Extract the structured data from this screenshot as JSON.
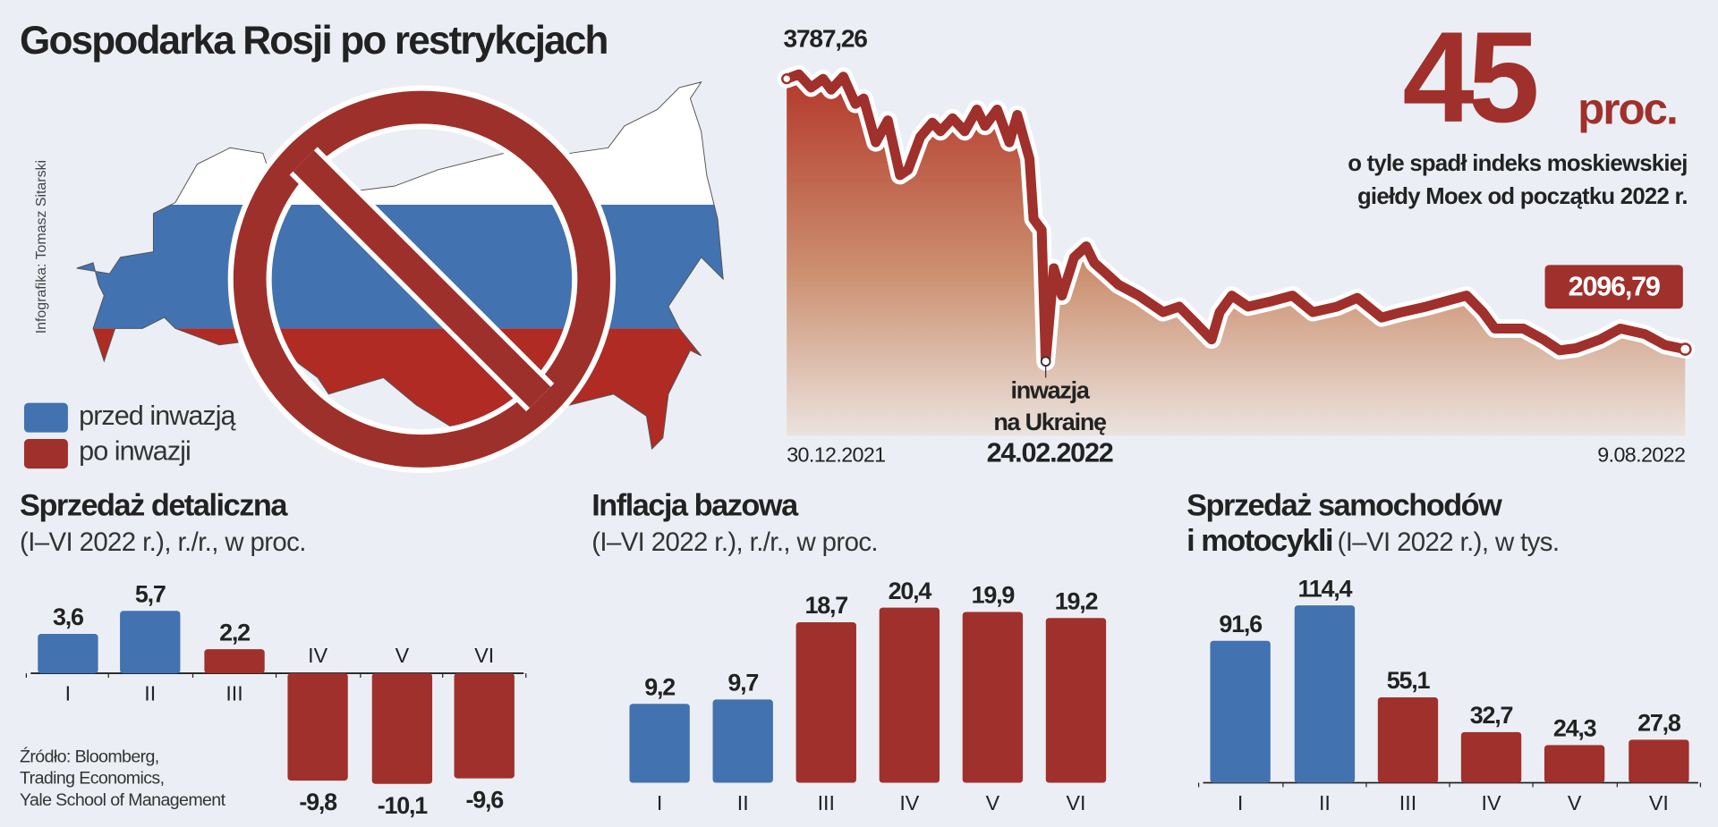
{
  "title": "Gospodarka Rosji po restrykcjach",
  "credit": "Infografika: Tomasz Sitarski",
  "legend": [
    {
      "label": "przed inwazją",
      "color": "#4272b0"
    },
    {
      "label": "po inwazji",
      "color": "#a0302b"
    }
  ],
  "headline": {
    "number": "45",
    "unit": "proc.",
    "line1": "o tyle spadł indeks moskiewskiej",
    "line2": "giełdy Moex od początku 2022 r."
  },
  "source": [
    "Źródło: Bloomberg,",
    "Trading Economics,",
    "Yale School of Management"
  ],
  "chart_data": [
    {
      "type": "area",
      "title": "Moex index",
      "start_label": "3787,26",
      "end_label": "2096,79",
      "x_start_label": "30.12.2021",
      "x_end_label": "9.08.2022",
      "annotation": {
        "line1": "inwazja",
        "line2": "na Ukrainę",
        "line3": "24.02.2022",
        "day": 64
      },
      "x_unit": "days since 30.12.2021",
      "x": [
        0,
        3,
        6,
        9,
        11,
        14,
        17,
        19,
        22,
        25,
        28,
        30,
        33,
        36,
        38,
        41,
        44,
        47,
        49,
        52,
        55,
        57,
        60,
        61,
        63,
        64,
        66,
        68,
        71,
        74,
        76,
        79,
        82,
        87,
        93,
        97,
        101,
        105,
        107,
        110,
        114,
        120,
        125,
        130,
        136,
        141,
        147,
        152,
        158,
        163,
        168,
        172,
        175,
        182,
        187,
        191,
        195,
        201,
        206,
        212,
        217,
        222
      ],
      "values": [
        3787,
        3815,
        3732,
        3787,
        3719,
        3801,
        3630,
        3664,
        3390,
        3527,
        3185,
        3219,
        3424,
        3513,
        3459,
        3541,
        3459,
        3595,
        3493,
        3595,
        3390,
        3561,
        3287,
        2911,
        2843,
        2021,
        2603,
        2432,
        2671,
        2740,
        2637,
        2569,
        2500,
        2432,
        2329,
        2363,
        2261,
        2158,
        2329,
        2432,
        2363,
        2398,
        2432,
        2329,
        2363,
        2418,
        2295,
        2329,
        2363,
        2398,
        2432,
        2329,
        2226,
        2226,
        2158,
        2090,
        2103,
        2158,
        2226,
        2192,
        2124,
        2097
      ],
      "ylim": [
        1900,
        3850
      ],
      "colors": {
        "line": "#a0302b",
        "fill_top": "#b3372a",
        "fill_bottom": "#ebe3de"
      }
    },
    {
      "type": "bar",
      "title": "Sprzedaż detaliczna",
      "subtitle": "(I–VI 2022 r.), r./r., w proc.",
      "categories": [
        "I",
        "II",
        "III",
        "IV",
        "V",
        "VI"
      ],
      "values": [
        3.6,
        5.7,
        2.2,
        -9.8,
        -10.1,
        -9.6
      ],
      "colors": [
        "#4272b0",
        "#4272b0",
        "#a0302b",
        "#a0302b",
        "#a0302b",
        "#a0302b"
      ]
    },
    {
      "type": "bar",
      "title": "Inflacja bazowa",
      "subtitle": "(I–VI 2022 r.), r./r., w proc.",
      "categories": [
        "I",
        "II",
        "III",
        "IV",
        "V",
        "VI"
      ],
      "values": [
        9.2,
        9.7,
        18.7,
        20.4,
        19.9,
        19.2
      ],
      "colors": [
        "#4272b0",
        "#4272b0",
        "#a0302b",
        "#a0302b",
        "#a0302b",
        "#a0302b"
      ]
    },
    {
      "type": "bar",
      "title": "Sprzedaż samochodów",
      "title2_bold": "i motocykli",
      "subtitle": "(I–VI 2022 r.), w tys.",
      "categories": [
        "I",
        "II",
        "III",
        "IV",
        "V",
        "VI"
      ],
      "values": [
        91.6,
        114.4,
        55.1,
        32.7,
        24.3,
        27.8
      ],
      "colors": [
        "#4272b0",
        "#4272b0",
        "#a0302b",
        "#a0302b",
        "#a0302b",
        "#a0302b"
      ]
    }
  ]
}
